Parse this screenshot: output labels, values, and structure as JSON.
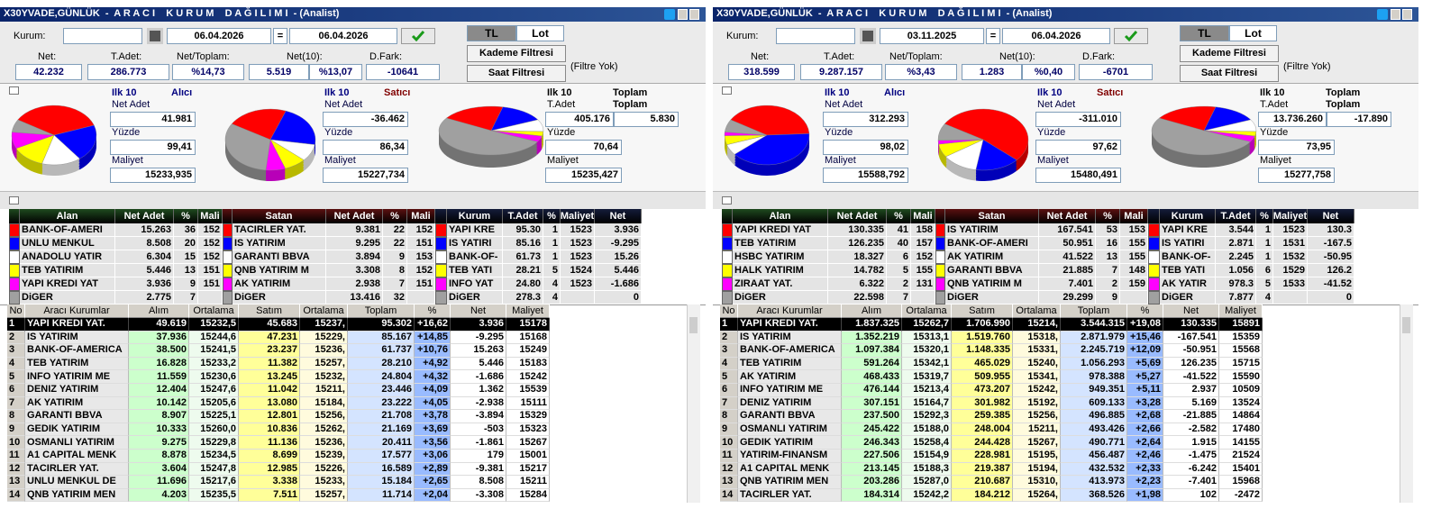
{
  "labels": {
    "kurum": "Kurum:",
    "eq": "=",
    "tl": "TL",
    "lot": "Lot",
    "kademe": "Kademe Filtresi",
    "saat": "Saat Filtresi",
    "filtre": "(Filtre Yok)",
    "net": "Net:",
    "tadet": "T.Adet:",
    "net_toplam": "Net/Toplam:",
    "net10": "Net(10):",
    "dfark": "D.Fark:",
    "ilk10": "Ilk 10",
    "alici": "Alıcı",
    "satici": "Satıcı",
    "toplam": "Toplam",
    "net_adet": "Net Adet",
    "t_adet": "T.Adet",
    "yuzde": "Yüzde",
    "maliyet": "Maliyet",
    "buyer_headers": [
      "Alan",
      "Net Adet",
      "%",
      "Mali"
    ],
    "seller_headers": [
      "Satan",
      "Net Adet",
      "%",
      "Mali"
    ],
    "kurum_headers": [
      "Kurum",
      "T.Adet",
      "%",
      "Maliyet",
      "Net"
    ],
    "main_headers": [
      "No",
      "Aracı Kurumlar",
      "Alım",
      "Ortalama",
      "Satım",
      "Ortalama",
      "Toplam",
      "%",
      "Net",
      "Maliyet"
    ]
  },
  "slice_colors": [
    "#ff0000",
    "#0000ff",
    "#ffffff",
    "#ffff00",
    "#ff00ff",
    "#a0a0a0"
  ],
  "panels": [
    {
      "title": "X30YVADE,GÜNLÜK  -  A R A C I    K U R U M    D A Ğ I L I M I  - (Analist)",
      "date_from": "06.04.2026",
      "date_to": "06.04.2026",
      "net": "42.232",
      "tadet": "286.773",
      "net_toplam": "%14,73",
      "net10": "5.519",
      "net10_pct": "%13,07",
      "dfark": "-10641",
      "buy": {
        "net_adet": "41.981",
        "yuzde": "99,41",
        "maliyet": "15233,935"
      },
      "sell": {
        "net_adet": "-36.462",
        "yuzde": "86,34",
        "maliyet": "15227,734"
      },
      "total": {
        "tadet": "405.176",
        "toplam": "5.830",
        "yuzde": "70,64",
        "maliyet": "15235,427"
      },
      "buyers": [
        [
          "BANK-OF-AMERI",
          "15.263",
          36,
          "152"
        ],
        [
          "UNLU MENKUL",
          "8.508",
          20,
          "152"
        ],
        [
          "ANADOLU YATIR",
          "6.304",
          15,
          "152"
        ],
        [
          "TEB YATIRIM",
          "5.446",
          13,
          "151"
        ],
        [
          "YAPI KREDI YAT",
          "3.936",
          9,
          "151"
        ],
        [
          "DiGER",
          "2.775",
          7,
          null
        ]
      ],
      "sellers": [
        [
          "TACIRLER YAT.",
          "9.381",
          22,
          "152"
        ],
        [
          "IS YATIRIM",
          "9.295",
          22,
          "151"
        ],
        [
          "GARANTI BBVA",
          "3.894",
          9,
          "153"
        ],
        [
          "QNB YATIRIM M",
          "3.308",
          8,
          "152"
        ],
        [
          "AK YATIRIM",
          "2.938",
          7,
          "151"
        ],
        [
          "DiGER",
          "13.416",
          32,
          null
        ]
      ],
      "kurum": [
        [
          "YAPI KRE",
          "95.30",
          1,
          "1523",
          "3.936"
        ],
        [
          "IS YATIRI",
          "85.16",
          1,
          "1523",
          "-9.295"
        ],
        [
          "BANK-OF-",
          "61.73",
          1,
          "1523",
          "15.26"
        ],
        [
          "TEB YATI",
          "28.21",
          5,
          "1524",
          "5.446"
        ],
        [
          "INFO YAT",
          "24.80",
          4,
          "1523",
          "-1.686"
        ],
        [
          "DiGER",
          "278.3",
          4,
          null,
          "0"
        ]
      ],
      "rows": [
        [
          "1",
          "YAPI KREDI YAT.",
          "49.619",
          "15232,5",
          "45.683",
          "15237,",
          "95.302",
          "+16,62",
          "3.936",
          "15178"
        ],
        [
          "2",
          "IS YATIRIM",
          "37.936",
          "15244,6",
          "47.231",
          "15229,",
          "85.167",
          "+14,85",
          "-9.295",
          "15168"
        ],
        [
          "3",
          "BANK-OF-AMERICA",
          "38.500",
          "15241,5",
          "23.237",
          "15236,",
          "61.737",
          "+10,76",
          "15.263",
          "15249"
        ],
        [
          "4",
          "TEB YATIRIM",
          "16.828",
          "15233,2",
          "11.382",
          "15257,",
          "28.210",
          "+4,92",
          "5.446",
          "15183"
        ],
        [
          "5",
          "INFO YATIRIM ME",
          "11.559",
          "15230,6",
          "13.245",
          "15232,",
          "24.804",
          "+4,32",
          "-1.686",
          "15242"
        ],
        [
          "6",
          "DENIZ YATIRIM",
          "12.404",
          "15247,6",
          "11.042",
          "15211,",
          "23.446",
          "+4,09",
          "1.362",
          "15539"
        ],
        [
          "7",
          "AK YATIRIM",
          "10.142",
          "15205,6",
          "13.080",
          "15184,",
          "23.222",
          "+4,05",
          "-2.938",
          "15111"
        ],
        [
          "8",
          "GARANTI BBVA",
          "8.907",
          "15225,1",
          "12.801",
          "15256,",
          "21.708",
          "+3,78",
          "-3.894",
          "15329"
        ],
        [
          "9",
          "GEDIK YATIRIM",
          "10.333",
          "15260,0",
          "10.836",
          "15262,",
          "21.169",
          "+3,69",
          "-503",
          "15323"
        ],
        [
          "10",
          "OSMANLI YATIRIM",
          "9.275",
          "15229,8",
          "11.136",
          "15236,",
          "20.411",
          "+3,56",
          "-1.861",
          "15267"
        ],
        [
          "11",
          "A1 CAPITAL MENK",
          "8.878",
          "15234,5",
          "8.699",
          "15239,",
          "17.577",
          "+3,06",
          "179",
          "15001"
        ],
        [
          "12",
          "TACIRLER YAT.",
          "3.604",
          "15247,8",
          "12.985",
          "15226,",
          "16.589",
          "+2,89",
          "-9.381",
          "15217"
        ],
        [
          "13",
          "UNLU MENKUL DE",
          "11.696",
          "15217,6",
          "3.338",
          "15233,",
          "15.184",
          "+2,65",
          "8.508",
          "15211"
        ],
        [
          "14",
          "QNB YATIRIM MEN",
          "4.203",
          "15235,5",
          "7.511",
          "15257,",
          "11.714",
          "+2,04",
          "-3.308",
          "15284"
        ]
      ]
    },
    {
      "title": "X30YVADE,GÜNLÜK  -  A R A C I    K U R U M    D A Ğ I L I M I  - (Analist)",
      "date_from": "03.11.2025",
      "date_to": "06.04.2026",
      "net": "318.599",
      "tadet": "9.287.157",
      "net_toplam": "%3,43",
      "net10": "1.283",
      "net10_pct": "%0,40",
      "dfark": "-6701",
      "buy": {
        "net_adet": "312.293",
        "yuzde": "98,02",
        "maliyet": "15588,792"
      },
      "sell": {
        "net_adet": "-311.010",
        "yuzde": "97,62",
        "maliyet": "15480,491"
      },
      "total": {
        "tadet": "13.736.260",
        "toplam": "-17.890",
        "yuzde": "73,95",
        "maliyet": "15277,758"
      },
      "buyers": [
        [
          "YAPI KREDI YAT",
          "130.335",
          41,
          "158"
        ],
        [
          "TEB YATIRIM",
          "126.235",
          40,
          "157"
        ],
        [
          "HSBC YATIRIM",
          "18.327",
          6,
          "152"
        ],
        [
          "HALK YATIRIM",
          "14.782",
          5,
          "155"
        ],
        [
          "ZIRAAT YAT.",
          "6.322",
          2,
          "131"
        ],
        [
          "DiGER",
          "22.598",
          7,
          null
        ]
      ],
      "sellers": [
        [
          "IS YATIRIM",
          "167.541",
          53,
          "153"
        ],
        [
          "BANK-OF-AMERI",
          "50.951",
          16,
          "155"
        ],
        [
          "AK YATIRIM",
          "41.522",
          13,
          "155"
        ],
        [
          "GARANTI BBVA",
          "21.885",
          7,
          "148"
        ],
        [
          "QNB YATIRIM M",
          "7.401",
          2,
          "159"
        ],
        [
          "DiGER",
          "29.299",
          9,
          null
        ]
      ],
      "kurum": [
        [
          "YAPI KRE",
          "3.544",
          1,
          "1523",
          "130.3"
        ],
        [
          "IS YATIRI",
          "2.871",
          1,
          "1531",
          "-167.5"
        ],
        [
          "BANK-OF-",
          "2.245",
          1,
          "1532",
          "-50.95"
        ],
        [
          "TEB YATI",
          "1.056",
          6,
          "1529",
          "126.2"
        ],
        [
          "AK YATIR",
          "978.3",
          5,
          "1533",
          "-41.52"
        ],
        [
          "DiGER",
          "7.877",
          4,
          null,
          "0"
        ]
      ],
      "rows": [
        [
          "1",
          "YAPI KREDI YAT.",
          "1.837.325",
          "15262,7",
          "1.706.990",
          "15214,",
          "3.544.315",
          "+19,08",
          "130.335",
          "15891"
        ],
        [
          "2",
          "IS YATIRIM",
          "1.352.219",
          "15313,1",
          "1.519.760",
          "15318,",
          "2.871.979",
          "+15,46",
          "-167.541",
          "15359"
        ],
        [
          "3",
          "BANK-OF-AMERICA",
          "1.097.384",
          "15320,1",
          "1.148.335",
          "15331,",
          "2.245.719",
          "+12,09",
          "-50.951",
          "15568"
        ],
        [
          "4",
          "TEB YATIRIM",
          "591.264",
          "15342,1",
          "465.029",
          "15240,",
          "1.056.293",
          "+5,69",
          "126.235",
          "15715"
        ],
        [
          "5",
          "AK YATIRIM",
          "468.433",
          "15319,7",
          "509.955",
          "15341,",
          "978.388",
          "+5,27",
          "-41.522",
          "15590"
        ],
        [
          "6",
          "INFO YATIRIM ME",
          "476.144",
          "15213,4",
          "473.207",
          "15242,",
          "949.351",
          "+5,11",
          "2.937",
          "10509"
        ],
        [
          "7",
          "DENIZ YATIRIM",
          "307.151",
          "15164,7",
          "301.982",
          "15192,",
          "609.133",
          "+3,28",
          "5.169",
          "13524"
        ],
        [
          "8",
          "GARANTI BBVA",
          "237.500",
          "15292,3",
          "259.385",
          "15256,",
          "496.885",
          "+2,68",
          "-21.885",
          "14864"
        ],
        [
          "9",
          "OSMANLI YATIRIM",
          "245.422",
          "15188,0",
          "248.004",
          "15211,",
          "493.426",
          "+2,66",
          "-2.582",
          "17480"
        ],
        [
          "10",
          "GEDIK YATIRIM",
          "246.343",
          "15258,4",
          "244.428",
          "15267,",
          "490.771",
          "+2,64",
          "1.915",
          "14155"
        ],
        [
          "11",
          "YATIRIM-FINANSM",
          "227.506",
          "15154,9",
          "228.981",
          "15195,",
          "456.487",
          "+2,46",
          "-1.475",
          "21524"
        ],
        [
          "12",
          "A1 CAPITAL MENK",
          "213.145",
          "15188,3",
          "219.387",
          "15194,",
          "432.532",
          "+2,33",
          "-6.242",
          "15401"
        ],
        [
          "13",
          "QNB YATIRIM MEN",
          "203.286",
          "15287,0",
          "210.687",
          "15310,",
          "413.973",
          "+2,23",
          "-7.401",
          "15968"
        ],
        [
          "14",
          "TACIRLER YAT.",
          "184.314",
          "15242,2",
          "184.212",
          "15264,",
          "368.526",
          "+1,98",
          "102",
          "-2472"
        ]
      ]
    }
  ]
}
